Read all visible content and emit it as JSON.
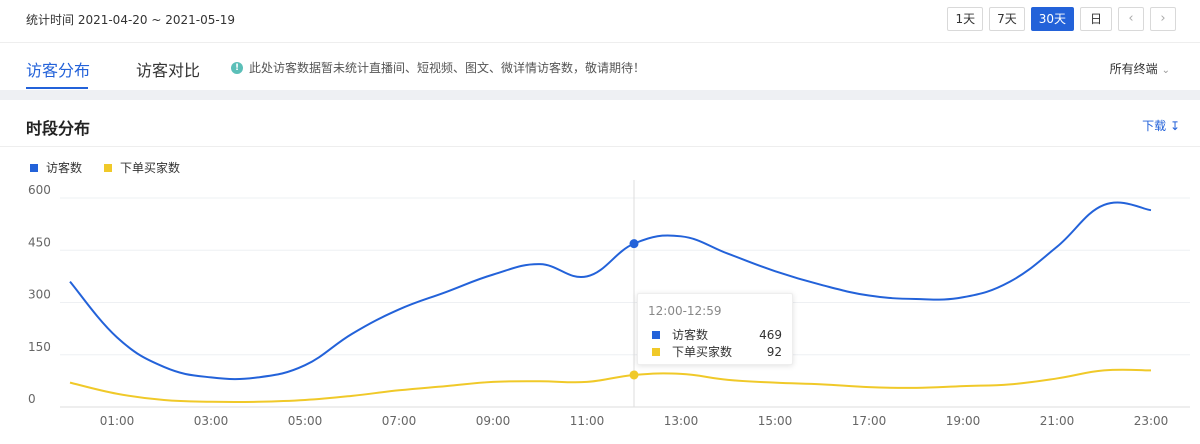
{
  "header": {
    "stat_time": "统计时间 2021-04-20 ~ 2021-05-19",
    "range_buttons": [
      "1天",
      "7天",
      "30天",
      "日"
    ],
    "nav_prev": "‹",
    "nav_next": "›"
  },
  "tabs": {
    "items": [
      "访客分布",
      "访客对比"
    ],
    "active_index": 0,
    "notice": "此处访客数据暂未统计直播间、短视频、图文、微详情访客数，敬请期待！",
    "terminal": "所有终端"
  },
  "section": {
    "title": "时段分布",
    "download": "下载"
  },
  "colors": {
    "accent": "#2362d9",
    "visitors": "#2362d9",
    "buyers": "#f0c929"
  },
  "tooltip": {
    "title": "12:00-12:59",
    "rows": [
      {
        "name": "访客数",
        "value": "469"
      },
      {
        "name": "下单买家数",
        "value": "92"
      }
    ]
  },
  "chart_data": {
    "type": "line",
    "x": [
      "00:00",
      "01:00",
      "02:00",
      "03:00",
      "04:00",
      "05:00",
      "06:00",
      "07:00",
      "08:00",
      "09:00",
      "10:00",
      "11:00",
      "12:00",
      "13:00",
      "14:00",
      "15:00",
      "16:00",
      "17:00",
      "18:00",
      "19:00",
      "20:00",
      "21:00",
      "22:00",
      "23:00"
    ],
    "x_tick_labels": [
      "01:00",
      "03:00",
      "05:00",
      "07:00",
      "09:00",
      "11:00",
      "13:00",
      "15:00",
      "17:00",
      "19:00",
      "21:00",
      "23:00"
    ],
    "y_ticks": [
      0,
      150,
      300,
      450,
      600
    ],
    "ylim": [
      0,
      600
    ],
    "series": [
      {
        "name": "访客数",
        "color": "#2362d9",
        "values": [
          360,
          200,
          115,
          85,
          85,
          120,
          210,
          280,
          330,
          380,
          410,
          375,
          469,
          490,
          440,
          390,
          350,
          320,
          310,
          315,
          360,
          460,
          580,
          565
        ]
      },
      {
        "name": "下单买家数",
        "color": "#f0c929",
        "values": [
          70,
          38,
          20,
          15,
          15,
          20,
          32,
          48,
          60,
          72,
          74,
          72,
          92,
          95,
          78,
          70,
          65,
          57,
          55,
          60,
          65,
          82,
          105,
          105
        ]
      }
    ],
    "highlight_index": 12,
    "grid": true,
    "legend_position": "top-left"
  }
}
